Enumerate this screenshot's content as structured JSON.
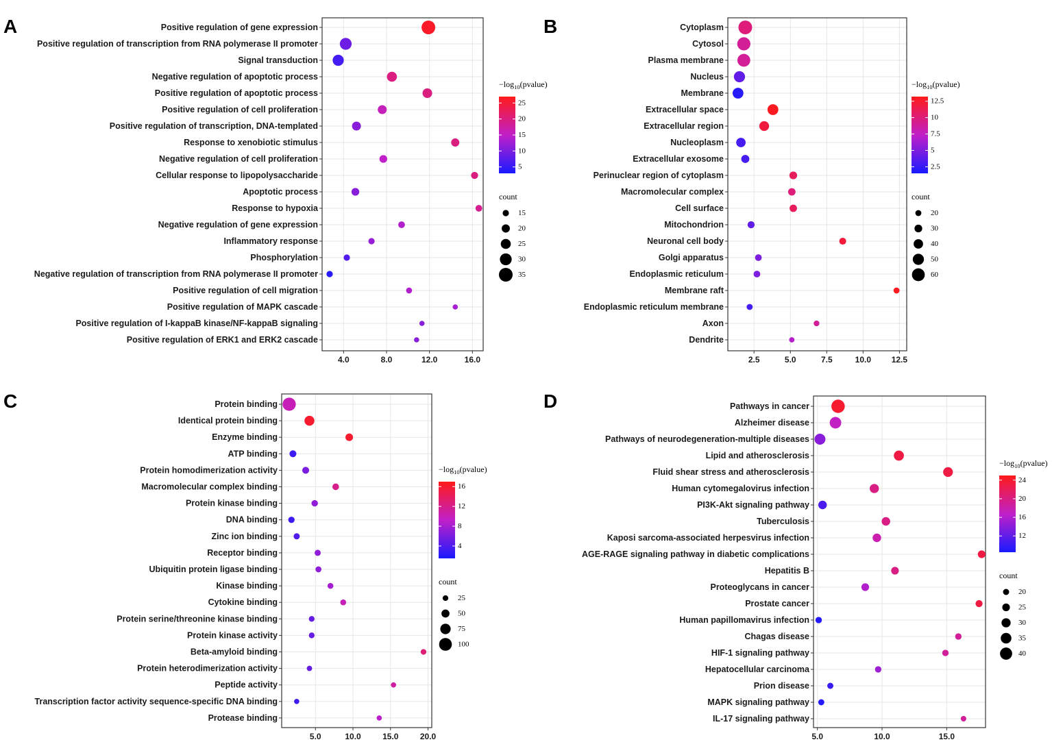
{
  "figure": {
    "bg": "#ffffff"
  },
  "colors": {
    "low": "#1a1aff",
    "mid": "#c020c8",
    "high": "#ff1a1a",
    "grid": "#e6e6e6",
    "frame": "#333333"
  },
  "chart_data": [
    {
      "panel": "A",
      "type": "scatter",
      "subtype": "bubble",
      "xticks": [
        4.0,
        8.0,
        12.0,
        16.0
      ],
      "xtick_labels": [
        "4.0",
        "8.0",
        "12.0",
        "16.0"
      ],
      "xlim": [
        2.0,
        17.0
      ],
      "xlabel": "",
      "ylabel": "",
      "categories": [
        "Positive regulation of gene expression",
        "Positive regulation of transcription from RNA polymerase II promoter",
        "Signal transduction",
        "Negative regulation of apoptotic process",
        "Positive regulation of apoptotic process",
        "Positive regulation of cell proliferation",
        "Positive regulation of transcription, DNA-templated",
        "Response to xenobiotic stimulus",
        "Negative regulation of cell proliferation",
        "Cellular response to lipopolysaccharide",
        "Apoptotic process",
        "Response to hypoxia",
        "Negative regulation of gene expression",
        "Inflammatory response",
        "Phosphorylation",
        "Negative regulation of transcription from RNA polymerase II promoter",
        "Positive regulation of cell migration",
        "Positive regulation of MAPK cascade",
        "Positive regulation of I-kappaB kinase/NF-kappaB signaling",
        "Positive regulation of ERK1 and ERK2  cascade"
      ],
      "x": [
        11.9,
        4.2,
        3.5,
        8.5,
        11.8,
        7.6,
        5.2,
        14.4,
        7.7,
        16.2,
        5.1,
        16.6,
        9.4,
        6.6,
        4.3,
        2.7,
        10.1,
        14.4,
        11.3,
        10.8
      ],
      "count": [
        35,
        30,
        28,
        25,
        24,
        22,
        22,
        20,
        19,
        17,
        19,
        16,
        16,
        15,
        15,
        15,
        14,
        12,
        12,
        12
      ],
      "neglog10p": [
        26,
        9,
        6,
        20,
        20,
        16,
        11,
        20,
        15,
        20,
        11,
        19,
        14,
        12,
        7,
        4,
        14,
        13,
        11,
        11
      ],
      "color_legend": {
        "title_main": "−log",
        "title_sub": "10",
        "title_rest": "(pvalue)",
        "ticks": [
          25,
          20,
          15,
          10,
          5
        ],
        "range": [
          3,
          27
        ]
      },
      "size_legend": {
        "title": "count",
        "values": [
          15,
          20,
          25,
          30,
          35
        ],
        "range": [
          12,
          35
        ]
      }
    },
    {
      "panel": "B",
      "type": "scatter",
      "subtype": "bubble",
      "xticks": [
        2.5,
        5.0,
        7.5,
        10.0,
        12.5
      ],
      "xtick_labels": [
        "2.5",
        "5.0",
        "7.5",
        "10.0",
        "12.5"
      ],
      "xlim": [
        0.7,
        13.0
      ],
      "xlabel": "",
      "ylabel": "",
      "categories": [
        "Cytoplasm",
        "Cytosol",
        "Plasma membrane",
        "Nucleus",
        "Membrane",
        "Extracellular space",
        "Extracellular region",
        "Nucleoplasm",
        "Extracellular exosome",
        "Perinuclear region of cytoplasm",
        "Macromolecular complex",
        "Cell surface",
        "Mitochondrion",
        "Neuronal cell body",
        "Golgi apparatus",
        "Endoplasmic reticulum",
        "Membrane raft",
        "Endoplasmic reticulum membrane",
        "Axon",
        "Dendrite"
      ],
      "x": [
        1.9,
        1.8,
        1.8,
        1.5,
        1.4,
        3.8,
        3.2,
        1.6,
        1.9,
        5.2,
        5.1,
        5.2,
        2.3,
        8.6,
        2.8,
        2.7,
        12.3,
        2.2,
        6.8,
        5.1
      ],
      "count": [
        65,
        62,
        60,
        50,
        48,
        48,
        42,
        40,
        32,
        30,
        28,
        28,
        26,
        25,
        24,
        24,
        20,
        20,
        18,
        16
      ],
      "neglog10p": [
        10,
        9,
        9,
        4,
        2,
        13,
        12,
        3,
        3,
        11,
        10,
        11,
        4,
        12,
        5,
        5,
        13,
        3,
        9,
        7
      ],
      "color_legend": {
        "title_main": "−log",
        "title_sub": "10",
        "title_rest": "(pvalue)",
        "ticks": [
          12.5,
          10.0,
          7.5,
          5.0,
          2.5
        ],
        "range": [
          1.5,
          13.2
        ]
      },
      "size_legend": {
        "title": "count",
        "values": [
          20,
          30,
          40,
          50,
          60
        ],
        "range": [
          15,
          65
        ]
      }
    },
    {
      "panel": "C",
      "type": "scatter",
      "subtype": "bubble",
      "xticks": [
        5.0,
        10.0,
        15.0,
        20.0
      ],
      "xtick_labels": [
        "5.0",
        "10.0",
        "15.0",
        "20.0"
      ],
      "xlim": [
        0.5,
        20.5
      ],
      "xlabel": "",
      "ylabel": "",
      "categories": [
        "Protein binding",
        "Identical protein binding",
        "Enzyme binding",
        "ATP binding",
        "Protein homodimerization activity",
        "Macromolecular complex binding",
        "Protein kinase binding",
        "DNA  binding",
        "Zinc ion binding",
        "Receptor binding",
        "Ubiquitin protein ligase binding",
        "Kinase binding",
        "Cytokine binding",
        "Protein serine/threonine kinase  binding",
        "Protein kinase activity",
        "Beta-amyloid binding",
        "Protein heterodimerization activity",
        "Peptide activity",
        "Transcription factor activity sequence-specific DNA binding",
        "Protease binding"
      ],
      "x": [
        1.5,
        4.2,
        9.5,
        2.0,
        3.7,
        7.7,
        4.9,
        1.8,
        2.5,
        5.3,
        5.4,
        7.0,
        8.7,
        4.5,
        4.5,
        19.4,
        4.2,
        15.4,
        2.5,
        13.5
      ],
      "count": [
        105,
        70,
        45,
        38,
        38,
        35,
        33,
        32,
        30,
        30,
        28,
        27,
        27,
        26,
        26,
        25,
        22,
        21,
        20,
        20
      ],
      "neglog10p": [
        10,
        16,
        16,
        3,
        6,
        12,
        7,
        3,
        4,
        7,
        7,
        8,
        10,
        5,
        5,
        13,
        5,
        11,
        3,
        9
      ],
      "color_legend": {
        "title_main": "−log",
        "title_sub": "10",
        "title_rest": "(pvalue)",
        "ticks": [
          16,
          12,
          8,
          4
        ],
        "range": [
          1.5,
          17
        ]
      },
      "size_legend": {
        "title": "count",
        "values": [
          25,
          50,
          75,
          100
        ],
        "range": [
          20,
          110
        ]
      }
    },
    {
      "panel": "D",
      "type": "scatter",
      "subtype": "bubble",
      "xticks": [
        5.0,
        10.0,
        15.0
      ],
      "xtick_labels": [
        "5.0",
        "10.0",
        "15.0"
      ],
      "xlim": [
        4.7,
        18.0
      ],
      "xlabel": "",
      "ylabel": "",
      "categories": [
        "Pathways in cancer",
        "Alzheimer disease",
        "Pathways of neurodegeneration-multiple diseases",
        "Lipid and atherosclerosis",
        "Fluid shear stress and atherosclerosis",
        "Human cytomegalovirus infection",
        "PI3K-Akt signaling pathway",
        "Tuberculosis",
        "Kaposi sarcoma-associated herpesvirus infection",
        "AGE-RAGE  signaling pathway in diabetic complications",
        "Hepatitis B",
        "Proteoglycans in cancer",
        "Prostate cancer",
        "Human papillomavirus infection",
        "Chagas disease",
        "HIF-1 signaling pathway",
        "Hepatocellular carcinoma",
        "Prion disease",
        "MAPK signaling pathway",
        "IL-17 signaling pathway"
      ],
      "x": [
        6.6,
        6.4,
        5.2,
        11.3,
        15.1,
        9.4,
        5.4,
        10.3,
        9.6,
        17.7,
        11.0,
        8.7,
        17.5,
        5.1,
        15.9,
        14.9,
        9.7,
        6.0,
        5.3,
        16.3
      ],
      "count": [
        44,
        38,
        36,
        33,
        32,
        30,
        28,
        28,
        28,
        25,
        25,
        25,
        23,
        21,
        21,
        21,
        21,
        20,
        20,
        18
      ],
      "neglog10p": [
        24,
        17,
        14,
        23,
        23,
        20,
        11,
        20,
        18,
        23,
        20,
        16,
        23,
        9,
        19,
        19,
        15,
        10,
        9,
        19
      ],
      "color_legend": {
        "title_main": "−log",
        "title_sub": "10",
        "title_rest": "(pvalue)",
        "ticks": [
          24,
          20,
          16,
          12
        ],
        "range": [
          8.5,
          25
        ]
      },
      "size_legend": {
        "title": "count",
        "values": [
          20,
          25,
          30,
          35,
          40
        ],
        "range": [
          17,
          45
        ]
      }
    }
  ]
}
